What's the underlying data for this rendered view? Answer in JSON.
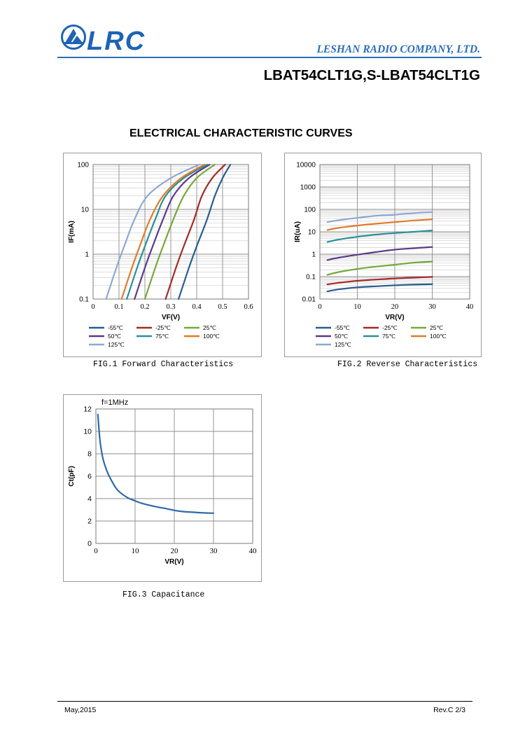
{
  "header": {
    "logo_text": "LRC",
    "company": "LESHAN RADIO COMPANY, LTD.",
    "part_number": "LBAT54CLT1G,S-LBAT54CLT1G"
  },
  "section_title": "ELECTRICAL CHARACTERISTIC CURVES",
  "colors": {
    "m55": "#2a5d8f",
    "m25": "#a32a2a",
    "p25": "#77a83a",
    "p50": "#5b3a86",
    "p75": "#2a8f99",
    "p100": "#e27a28",
    "p125": "#8ea8d4",
    "cap": "#2f6aa8",
    "brand": "#1e63b4"
  },
  "figures": {
    "fig1_caption": "FIG.1 Forward Characteristics",
    "fig2_caption": "FIG.2 Reverse Characteristics",
    "fig3_caption": "FIG.3 Capacitance"
  },
  "chart_data": [
    {
      "type": "line",
      "xlabel": "VF(V)",
      "ylabel": "IF(mA)",
      "xlim": [
        0,
        0.6
      ],
      "ylim": [
        0.1,
        100
      ],
      "yscale": "log",
      "x_ticks": [
        "0",
        "0.1",
        "0.2",
        "0.3",
        "0.4",
        "0.5",
        "0.6"
      ],
      "y_ticks": [
        "0.1",
        "1",
        "10",
        "100"
      ],
      "grid": true,
      "legend_position": "bottom",
      "series": [
        {
          "name": "-55℃",
          "color_key": "m55",
          "x": [
            0.33,
            0.37,
            0.4,
            0.44,
            0.47,
            0.5,
            0.53
          ],
          "y": [
            0.1,
            0.5,
            1.5,
            6,
            20,
            50,
            100
          ]
        },
        {
          "name": "-25℃",
          "color_key": "m25",
          "x": [
            0.28,
            0.32,
            0.35,
            0.39,
            0.42,
            0.46,
            0.51
          ],
          "y": [
            0.1,
            0.5,
            1.5,
            6,
            20,
            50,
            100
          ]
        },
        {
          "name": "25℃",
          "color_key": "p25",
          "x": [
            0.2,
            0.24,
            0.27,
            0.31,
            0.35,
            0.4,
            0.47
          ],
          "y": [
            0.1,
            0.5,
            1.5,
            6,
            20,
            50,
            100
          ]
        },
        {
          "name": "50℃",
          "color_key": "p50",
          "x": [
            0.16,
            0.2,
            0.23,
            0.27,
            0.31,
            0.37,
            0.45
          ],
          "y": [
            0.1,
            0.5,
            1.5,
            6,
            20,
            50,
            100
          ]
        },
        {
          "name": "75℃",
          "color_key": "p75",
          "x": [
            0.13,
            0.17,
            0.2,
            0.24,
            0.28,
            0.35,
            0.44
          ],
          "y": [
            0.1,
            0.5,
            1.5,
            6,
            20,
            50,
            100
          ]
        },
        {
          "name": "100℃",
          "color_key": "p100",
          "x": [
            0.11,
            0.15,
            0.18,
            0.22,
            0.27,
            0.34,
            0.43
          ],
          "y": [
            0.1,
            0.5,
            1.5,
            6,
            20,
            50,
            100
          ]
        },
        {
          "name": "125℃",
          "color_key": "p125",
          "x": [
            0.05,
            0.09,
            0.12,
            0.16,
            0.21,
            0.3,
            0.41
          ],
          "y": [
            0.1,
            0.5,
            1.5,
            6,
            20,
            50,
            100
          ]
        }
      ]
    },
    {
      "type": "line",
      "xlabel": "VR(V)",
      "ylabel": "IR(uA)",
      "xlim": [
        0,
        40
      ],
      "ylim": [
        0.01,
        10000
      ],
      "yscale": "log",
      "x_ticks": [
        "0",
        "10",
        "20",
        "30",
        "40"
      ],
      "y_ticks": [
        "0.01",
        "0.1",
        "1",
        "10",
        "100",
        "1000",
        "10000"
      ],
      "grid": true,
      "legend_position": "bottom",
      "series": [
        {
          "name": "-55℃",
          "color_key": "m55",
          "x": [
            2,
            5,
            10,
            15,
            20,
            25,
            30
          ],
          "y": [
            0.022,
            0.027,
            0.033,
            0.037,
            0.041,
            0.044,
            0.046
          ]
        },
        {
          "name": "-25℃",
          "color_key": "m25",
          "x": [
            2,
            5,
            10,
            15,
            20,
            25,
            30
          ],
          "y": [
            0.045,
            0.053,
            0.065,
            0.074,
            0.083,
            0.09,
            0.097
          ]
        },
        {
          "name": "25℃",
          "color_key": "p25",
          "x": [
            2,
            5,
            10,
            15,
            20,
            25,
            30
          ],
          "y": [
            0.12,
            0.16,
            0.22,
            0.28,
            0.34,
            0.42,
            0.47
          ]
        },
        {
          "name": "50℃",
          "color_key": "p50",
          "x": [
            2,
            5,
            10,
            15,
            20,
            25,
            30
          ],
          "y": [
            0.55,
            0.7,
            0.95,
            1.25,
            1.6,
            1.85,
            2.1
          ]
        },
        {
          "name": "75℃",
          "color_key": "p75",
          "x": [
            2,
            5,
            10,
            15,
            20,
            25,
            30
          ],
          "y": [
            3.5,
            4.5,
            6,
            7.5,
            8.8,
            10,
            11.5
          ]
        },
        {
          "name": "100℃",
          "color_key": "p100",
          "x": [
            2,
            5,
            10,
            15,
            20,
            25,
            30
          ],
          "y": [
            12,
            15,
            19,
            23,
            27,
            32,
            36
          ]
        },
        {
          "name": "125℃",
          "color_key": "p125",
          "x": [
            2,
            5,
            10,
            15,
            20,
            25,
            30
          ],
          "y": [
            27,
            33,
            42,
            52,
            58,
            68,
            76
          ]
        }
      ]
    },
    {
      "type": "line",
      "annotation": "f=1MHz",
      "xlabel": "VR(V)",
      "ylabel": "Ct(pF)",
      "xlim": [
        0,
        40
      ],
      "ylim": [
        0,
        12
      ],
      "yscale": "linear",
      "x_ticks": [
        "0",
        "10",
        "20",
        "30",
        "40"
      ],
      "y_ticks": [
        "0",
        "2",
        "4",
        "6",
        "8",
        "10",
        "12"
      ],
      "grid": true,
      "series": [
        {
          "color_key": "cap",
          "x": [
            0.5,
            1,
            1.5,
            2,
            3,
            4,
            5,
            6,
            8,
            10,
            12,
            15,
            18,
            20,
            22,
            25,
            28,
            30
          ],
          "y": [
            11.5,
            9.3,
            8.1,
            7.3,
            6.3,
            5.6,
            5.0,
            4.6,
            4.1,
            3.8,
            3.55,
            3.3,
            3.1,
            2.95,
            2.85,
            2.78,
            2.72,
            2.7
          ]
        }
      ]
    }
  ],
  "footer": {
    "date": "May,2015",
    "revision": "Rev.C 2/3"
  }
}
